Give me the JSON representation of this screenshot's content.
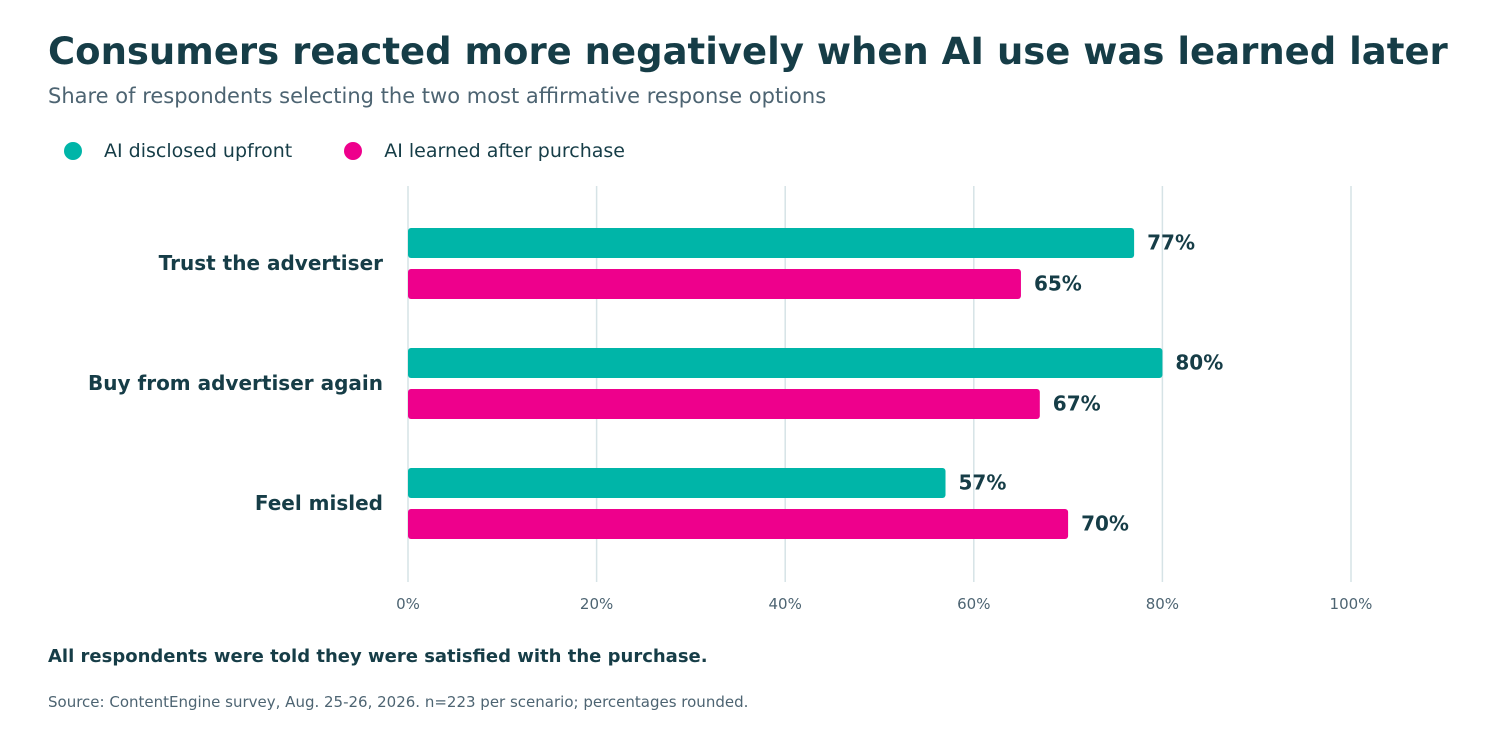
{
  "header": {
    "title": "Consumers reacted more negatively when AI use was learned later",
    "subtitle": "Share of respondents selecting the two most affirmative response options"
  },
  "footer": {
    "note": "All respondents were told they were satisfied with the purchase.",
    "source": "Source: ContentEngine survey, Aug. 25-26, 2026. n=223 per scenario; percentages rounded."
  },
  "colors": {
    "disclosed": "#00b5a8",
    "learned_after": "#ee008c",
    "text_dark": "#163d47",
    "text_muted": "#4d6472",
    "grid": "#d6e3e6"
  },
  "chart_data": {
    "type": "bar",
    "orientation": "horizontal",
    "title": "Consumers reacted more negatively when AI use was learned later",
    "subtitle": "Share of respondents selecting the two most affirmative response options",
    "categories": [
      "Trust the advertiser",
      "Buy from advertiser again",
      "Feel misled"
    ],
    "series": [
      {
        "name": "AI disclosed upfront",
        "values": [
          77,
          80,
          57
        ],
        "color": "#00b5a8"
      },
      {
        "name": "AI learned after purchase",
        "values": [
          65,
          67,
          70
        ],
        "color": "#ee008c"
      }
    ],
    "value_labels": [
      [
        "77%",
        "80%",
        "57%"
      ],
      [
        "65%",
        "67%",
        "70%"
      ]
    ],
    "xlabel": "",
    "ylabel": "",
    "xlim": [
      0,
      100
    ],
    "xticks": [
      0,
      20,
      40,
      60,
      80,
      100
    ],
    "xtick_labels": [
      "0%",
      "20%",
      "40%",
      "60%",
      "80%",
      "100%"
    ],
    "grid": true,
    "legend": "top-left"
  }
}
